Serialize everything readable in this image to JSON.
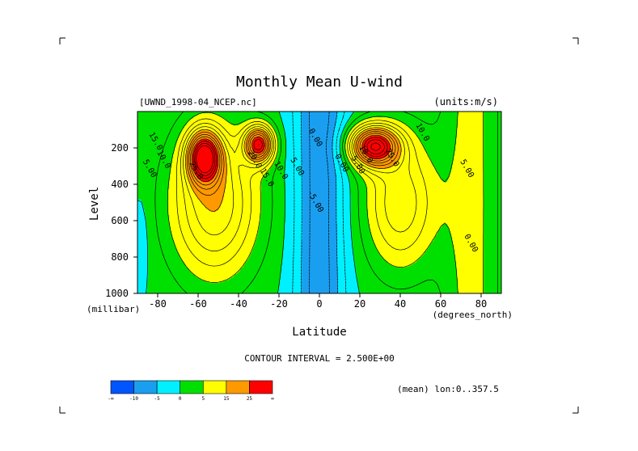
{
  "chart_data": {
    "type": "contour",
    "title": "Monthly Mean U-wind",
    "dataset_label": "[UWND_1998-04_NCEP.nc]",
    "units_label": "(units:m/s)",
    "xlabel": "Latitude",
    "x_unit_label": "(degrees_north)",
    "ylabel": "Level",
    "y_unit_label": "(millibar)",
    "xlim": [
      -90,
      90
    ],
    "ylim": [
      1000,
      0
    ],
    "x_ticks": [
      -80,
      -60,
      -40,
      -20,
      0,
      20,
      40,
      60,
      80
    ],
    "x_tick_labels": [
      "-80",
      "-60",
      "-40",
      "-20",
      "0",
      "20",
      "40",
      "60",
      "80"
    ],
    "y_ticks": [
      200,
      400,
      600,
      800,
      1000
    ],
    "y_tick_labels": [
      "200",
      "400",
      "600",
      "800",
      "1000"
    ],
    "contour_interval_text": "CONTOUR INTERVAL = 2.500E+00",
    "mean_note": "(mean) lon:0..357.5",
    "jets": [
      {
        "lat": -57,
        "level": 250,
        "speed": 30,
        "dlat": 8,
        "dlev": 140
      },
      {
        "lat": -30,
        "level": 180,
        "speed": 27,
        "dlat": 7,
        "dlev": 100
      },
      {
        "lat": 27,
        "level": 190,
        "speed": 30,
        "dlat": 12,
        "dlev": 110
      }
    ],
    "contour_labels": [
      {
        "text": "15.0",
        "lat": -82,
        "level": 170
      },
      {
        "text": "10.0",
        "lat": -78,
        "level": 270
      },
      {
        "text": "5.00",
        "lat": -85,
        "level": 320
      },
      {
        "text": "25.0",
        "lat": -62,
        "level": 330
      },
      {
        "text": "20.0",
        "lat": -33,
        "level": 270
      },
      {
        "text": "15.0",
        "lat": -27,
        "level": 370
      },
      {
        "text": "10.0",
        "lat": -20,
        "level": 330
      },
      {
        "text": "5.00",
        "lat": -12,
        "level": 310
      },
      {
        "text": "0.00",
        "lat": -3,
        "level": 150
      },
      {
        "text": "-5.00",
        "lat": -3,
        "level": 500
      },
      {
        "text": "0.00",
        "lat": 10,
        "level": 290
      },
      {
        "text": "5.00",
        "lat": 18,
        "level": 300
      },
      {
        "text": "10.0",
        "lat": 22,
        "level": 240
      },
      {
        "text": "25.0",
        "lat": 35,
        "level": 260
      },
      {
        "text": "10.0",
        "lat": 50,
        "level": 120
      },
      {
        "text": "5.00",
        "lat": 72,
        "level": 320
      },
      {
        "text": "0.00",
        "lat": 74,
        "level": 730
      }
    ],
    "colorbar": {
      "colors": [
        "#0055ff",
        "#1a9ff0",
        "#00f0ff",
        "#00e000",
        "#ffff00",
        "#ff9900",
        "#ff0000"
      ],
      "tick_labels": [
        "-∞",
        "-10",
        "-5",
        "0",
        "5",
        "15",
        "25",
        "∞"
      ]
    }
  }
}
